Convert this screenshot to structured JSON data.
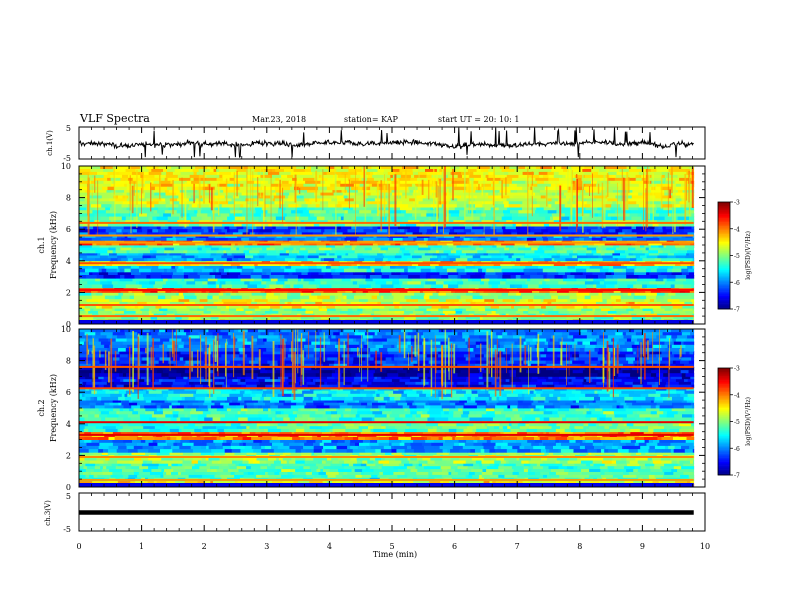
{
  "header": {
    "title": "VLF Spectra",
    "date": "Mar.23, 2018",
    "station": "station= KAP",
    "start": "start  UT =   20: 10: 1"
  },
  "chart_data": [
    {
      "type": "line",
      "panel": "ch1-waveform",
      "ylabel": "ch.1(V)",
      "ylim": [
        -5,
        5
      ],
      "xlim": [
        0,
        10
      ],
      "y_ticks": [
        "5",
        "-5"
      ],
      "description_of_values": "noisy waveform, mostly between about -1.5 and 1.5 V with occasional excursions to the panel limits",
      "mean": -0.3,
      "spread": 1.2,
      "x_end": 9.82,
      "color": "#000000"
    },
    {
      "type": "heatmap",
      "panel": "ch1-spectrogram",
      "ylabel": "ch.1\nFrequency (kHz)",
      "ylabel_line1": "ch.1",
      "ylabel_line2": "Frequency (kHz)",
      "ylim": [
        0,
        10
      ],
      "xlim": [
        0,
        10
      ],
      "x_end": 9.82,
      "y_ticks": [
        "0",
        "2",
        "4",
        "6",
        "8",
        "10"
      ],
      "bands": [
        {
          "f0": 0.0,
          "f1": 0.3,
          "level": -4.2
        },
        {
          "f0": 0.3,
          "f1": 1.0,
          "level": -5.0
        },
        {
          "f0": 1.0,
          "f1": 1.6,
          "level": -4.6
        },
        {
          "f0": 1.6,
          "f1": 2.0,
          "level": -4.9
        },
        {
          "f0": 2.0,
          "f1": 2.3,
          "level": -3.8
        },
        {
          "f0": 2.3,
          "f1": 2.9,
          "level": -5.3
        },
        {
          "f0": 2.9,
          "f1": 3.3,
          "level": -6.3
        },
        {
          "f0": 3.3,
          "f1": 3.7,
          "level": -5.5
        },
        {
          "f0": 3.7,
          "f1": 4.0,
          "level": -4.3
        },
        {
          "f0": 4.0,
          "f1": 4.5,
          "level": -5.6
        },
        {
          "f0": 4.5,
          "f1": 5.0,
          "level": -5.2
        },
        {
          "f0": 5.0,
          "f1": 5.3,
          "level": -4.0
        },
        {
          "f0": 5.3,
          "f1": 5.6,
          "level": -6.0
        },
        {
          "f0": 5.6,
          "f1": 6.2,
          "level": -6.3
        },
        {
          "f0": 6.2,
          "f1": 6.6,
          "level": -5.0
        },
        {
          "f0": 6.6,
          "f1": 7.4,
          "level": -5.2
        },
        {
          "f0": 7.4,
          "f1": 8.5,
          "level": -4.7
        },
        {
          "f0": 8.5,
          "f1": 10.0,
          "level": -4.5
        }
      ],
      "lines": [
        0.5,
        1.2,
        2.15,
        3.85,
        5.15,
        5.6,
        6.4
      ],
      "colorbar": {
        "label": "log(PSD)(V²/Hz)",
        "min": -7,
        "max": -3,
        "ticks": [
          "-3",
          "-4",
          "-5",
          "-6",
          "-7"
        ]
      }
    },
    {
      "type": "heatmap",
      "panel": "ch2-spectrogram",
      "ylabel": "ch.2\nFrequency (kHz)",
      "ylabel_line1": "ch.2",
      "ylabel_line2": "Frequency (kHz)",
      "ylim": [
        0,
        10
      ],
      "xlim": [
        0,
        10
      ],
      "x_end": 9.82,
      "y_ticks": [
        "0",
        "2",
        "4",
        "6",
        "8",
        "10"
      ],
      "bands": [
        {
          "f0": 0.0,
          "f1": 0.4,
          "level": -4.5
        },
        {
          "f0": 0.4,
          "f1": 1.5,
          "level": -5.2
        },
        {
          "f0": 1.5,
          "f1": 2.2,
          "level": -4.9
        },
        {
          "f0": 2.2,
          "f1": 3.0,
          "level": -5.9
        },
        {
          "f0": 3.0,
          "f1": 3.5,
          "level": -4.0
        },
        {
          "f0": 3.5,
          "f1": 4.2,
          "level": -5.1
        },
        {
          "f0": 4.2,
          "f1": 5.0,
          "level": -5.3
        },
        {
          "f0": 5.0,
          "f1": 5.5,
          "level": -6.0
        },
        {
          "f0": 5.5,
          "f1": 6.3,
          "level": -5.6
        },
        {
          "f0": 6.3,
          "f1": 7.0,
          "level": -6.5
        },
        {
          "f0": 7.0,
          "f1": 7.6,
          "level": -6.9
        },
        {
          "f0": 7.6,
          "f1": 8.6,
          "level": -6.3
        },
        {
          "f0": 8.6,
          "f1": 10.0,
          "level": -6.0
        }
      ],
      "lines": [
        0.45,
        1.9,
        3.3,
        4.1,
        6.25,
        7.6
      ],
      "colorbar": {
        "label": "log(PSD)(V²/Hz)",
        "min": -7,
        "max": -3,
        "ticks": [
          "-3",
          "-4",
          "-5",
          "-6",
          "-7"
        ]
      }
    },
    {
      "type": "line",
      "panel": "ch3-waveform",
      "ylabel": "ch.3(V)",
      "ylim": [
        -5,
        5
      ],
      "xlim": [
        0,
        10
      ],
      "x_end": 9.82,
      "y_ticks": [
        "5",
        "-5"
      ],
      "constant_value": 0,
      "color": "#000000"
    }
  ],
  "x_axis": {
    "label": "Time  (min)",
    "ticks": [
      "0",
      "1",
      "2",
      "3",
      "4",
      "5",
      "6",
      "7",
      "8",
      "9",
      "10"
    ]
  }
}
